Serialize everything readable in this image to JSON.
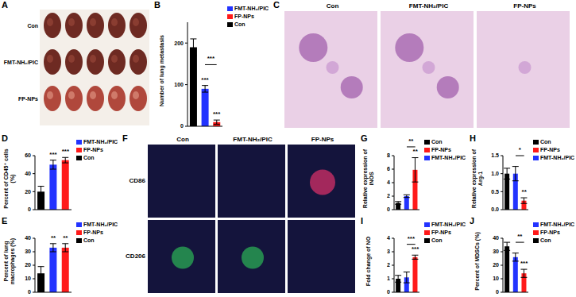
{
  "chart_data": [
    {
      "label": "B",
      "type": "bar",
      "y_label": "Number of lung metastasis",
      "categories": [
        null,
        null,
        null
      ],
      "ylim": [
        0,
        250
      ],
      "yticks": [
        0,
        100,
        200
      ],
      "tick_labels": "y",
      "legend": "top right",
      "series": [
        {
          "name": "FMT-NH₂/PIC",
          "color": "#2233ff",
          "values": [
            null,
            90,
            null
          ],
          "errors": [
            null,
            8,
            null
          ],
          "annotation": "***"
        },
        {
          "name": "FP-NPs",
          "color": "#ff1a1a",
          "values": [
            null,
            null,
            10
          ],
          "errors": [
            null,
            null,
            5
          ],
          "annotation": "***"
        },
        {
          "name": "Con",
          "color": "#000000",
          "values": [
            190,
            null,
            null
          ],
          "errors": [
            20,
            null,
            null
          ]
        }
      ],
      "brackets": [
        {
          "from": 1,
          "to": 2,
          "text": "***"
        }
      ]
    },
    {
      "label": "D",
      "type": "bar",
      "y_label": "Percent of CD45⁺ cells (%)",
      "categories": [
        null,
        null,
        null
      ],
      "ylim": [
        0,
        60
      ],
      "yticks": [
        0,
        20,
        40,
        60
      ],
      "tick_labels": "y",
      "legend": "top right",
      "series": [
        {
          "name": "FMT-NH₂/PIC",
          "color": "#2233ff",
          "values": [
            null,
            50,
            null
          ],
          "errors": [
            null,
            5,
            null
          ],
          "annotation": "***"
        },
        {
          "name": "FP-NPs",
          "color": "#ff1a1a",
          "values": [
            null,
            null,
            55
          ],
          "errors": [
            null,
            null,
            3
          ],
          "annotation": "***"
        },
        {
          "name": "Con",
          "color": "#000000",
          "values": [
            20,
            null,
            null
          ],
          "errors": [
            6,
            null,
            null
          ]
        }
      ],
      "brackets": []
    },
    {
      "label": "E",
      "type": "bar",
      "y_label": "Percent of lung macrophages (%)",
      "categories": [
        null,
        null,
        null
      ],
      "ylim": [
        0,
        40
      ],
      "yticks": [
        0,
        10,
        20,
        30,
        40
      ],
      "tick_labels": "y",
      "legend": "top right",
      "series": [
        {
          "name": "FMT-NH₂/PIC",
          "color": "#2233ff",
          "values": [
            null,
            33,
            null
          ],
          "errors": [
            null,
            3,
            null
          ],
          "annotation": "**"
        },
        {
          "name": "FP-NPs",
          "color": "#ff1a1a",
          "values": [
            null,
            null,
            33
          ],
          "errors": [
            null,
            null,
            3
          ],
          "annotation": "**"
        },
        {
          "name": "Con",
          "color": "#000000",
          "values": [
            14,
            null,
            null
          ],
          "errors": [
            5,
            null,
            null
          ]
        }
      ],
      "brackets": []
    },
    {
      "label": "G",
      "type": "bar",
      "y_label": "Relative expression of iNOS",
      "categories": [
        null,
        null,
        null
      ],
      "ylim": [
        0,
        8
      ],
      "yticks": [
        0,
        2,
        4,
        6,
        8
      ],
      "tick_labels": "y",
      "legend": "top right",
      "series": [
        {
          "name": "Con",
          "color": "#000000",
          "values": [
            1.0,
            null,
            null
          ],
          "errors": [
            0.2,
            null,
            null
          ]
        },
        {
          "name": "FP-NPs",
          "color": "#ff1a1a",
          "values": [
            null,
            null,
            5.9
          ],
          "errors": [
            null,
            null,
            1.8
          ],
          "annotation": "**"
        },
        {
          "name": "FMT-NH₂/PIC",
          "color": "#2233ff",
          "values": [
            null,
            2.0,
            null
          ],
          "errors": [
            null,
            0.2,
            null
          ]
        }
      ],
      "brackets": [
        {
          "from": 1,
          "to": 2,
          "text": "**"
        }
      ]
    },
    {
      "label": "H",
      "type": "bar",
      "y_label": "Relative expression of Arg-1",
      "categories": [
        null,
        null,
        null
      ],
      "ylim": [
        0,
        1.5
      ],
      "yticks": [
        {
          "value": 0,
          "label": "0.0"
        },
        0.5,
        {
          "value": 1,
          "label": "1.0"
        },
        1.5
      ],
      "tick_labels": "y",
      "legend": "top right",
      "series": [
        {
          "name": "Con",
          "color": "#000000",
          "values": [
            1.0,
            null,
            null
          ],
          "errors": [
            0.15,
            null,
            null
          ]
        },
        {
          "name": "FP-NPs",
          "color": "#ff1a1a",
          "values": [
            null,
            null,
            0.25
          ],
          "errors": [
            null,
            null,
            0.08
          ],
          "annotation": "**"
        },
        {
          "name": "FMT-NH₂/PIC",
          "color": "#2233ff",
          "values": [
            null,
            1.0,
            null
          ],
          "errors": [
            null,
            0.2,
            null
          ]
        }
      ],
      "brackets": [
        {
          "from": 1,
          "to": 2,
          "text": "*"
        }
      ]
    },
    {
      "label": "I",
      "type": "bar",
      "y_label": "Fold change of NO",
      "categories": [
        null,
        null,
        null
      ],
      "ylim": [
        0,
        4
      ],
      "yticks": [
        0,
        1,
        2,
        3,
        4
      ],
      "tick_labels": "y",
      "legend": "top right",
      "series": [
        {
          "name": "FMT-NH₂/PIC",
          "color": "#2233ff",
          "values": [
            null,
            1.1,
            null
          ],
          "errors": [
            null,
            0.4,
            null
          ]
        },
        {
          "name": "FP-NPs",
          "color": "#ff1a1a",
          "values": [
            null,
            null,
            2.6
          ],
          "errors": [
            null,
            null,
            0.15
          ],
          "annotation": "***"
        },
        {
          "name": "Con",
          "color": "#000000",
          "values": [
            1.0,
            null,
            null
          ],
          "errors": [
            0.25,
            null,
            null
          ]
        }
      ],
      "brackets": [
        {
          "from": 1,
          "to": 2,
          "text": "***"
        }
      ]
    },
    {
      "label": "J",
      "type": "bar",
      "y_label": "Percent of MDSCs (%)",
      "categories": [
        null,
        null,
        null
      ],
      "ylim": [
        0,
        40
      ],
      "yticks": [
        0,
        10,
        20,
        30,
        40
      ],
      "tick_labels": "y",
      "legend": "top right",
      "series": [
        {
          "name": "FMT-NH₂/PIC",
          "color": "#2233ff",
          "values": [
            null,
            26,
            null
          ],
          "errors": [
            null,
            3,
            null
          ]
        },
        {
          "name": "FP-NPs",
          "color": "#ff1a1a",
          "values": [
            null,
            null,
            14
          ],
          "errors": [
            null,
            null,
            3
          ],
          "annotation": "***"
        },
        {
          "name": "Con",
          "color": "#000000",
          "values": [
            34,
            null,
            null
          ],
          "errors": [
            3,
            null,
            null
          ]
        }
      ],
      "brackets": [
        {
          "from": 1,
          "to": 2,
          "text": "**"
        }
      ]
    }
  ],
  "image_panels": {
    "A": {
      "label": "A",
      "rows": [
        "Con",
        "FMT-NH₂/PIC",
        "FP-NPs"
      ]
    },
    "C": {
      "label": "C",
      "columns": [
        "Con",
        "FMT-NH₂/PIC",
        "FP-NPs"
      ]
    },
    "F": {
      "label": "F",
      "columns": [
        "Con",
        "FMT-NH₂/PIC",
        "FP-NPs"
      ],
      "rows": [
        "CD86",
        "CD206"
      ]
    }
  }
}
